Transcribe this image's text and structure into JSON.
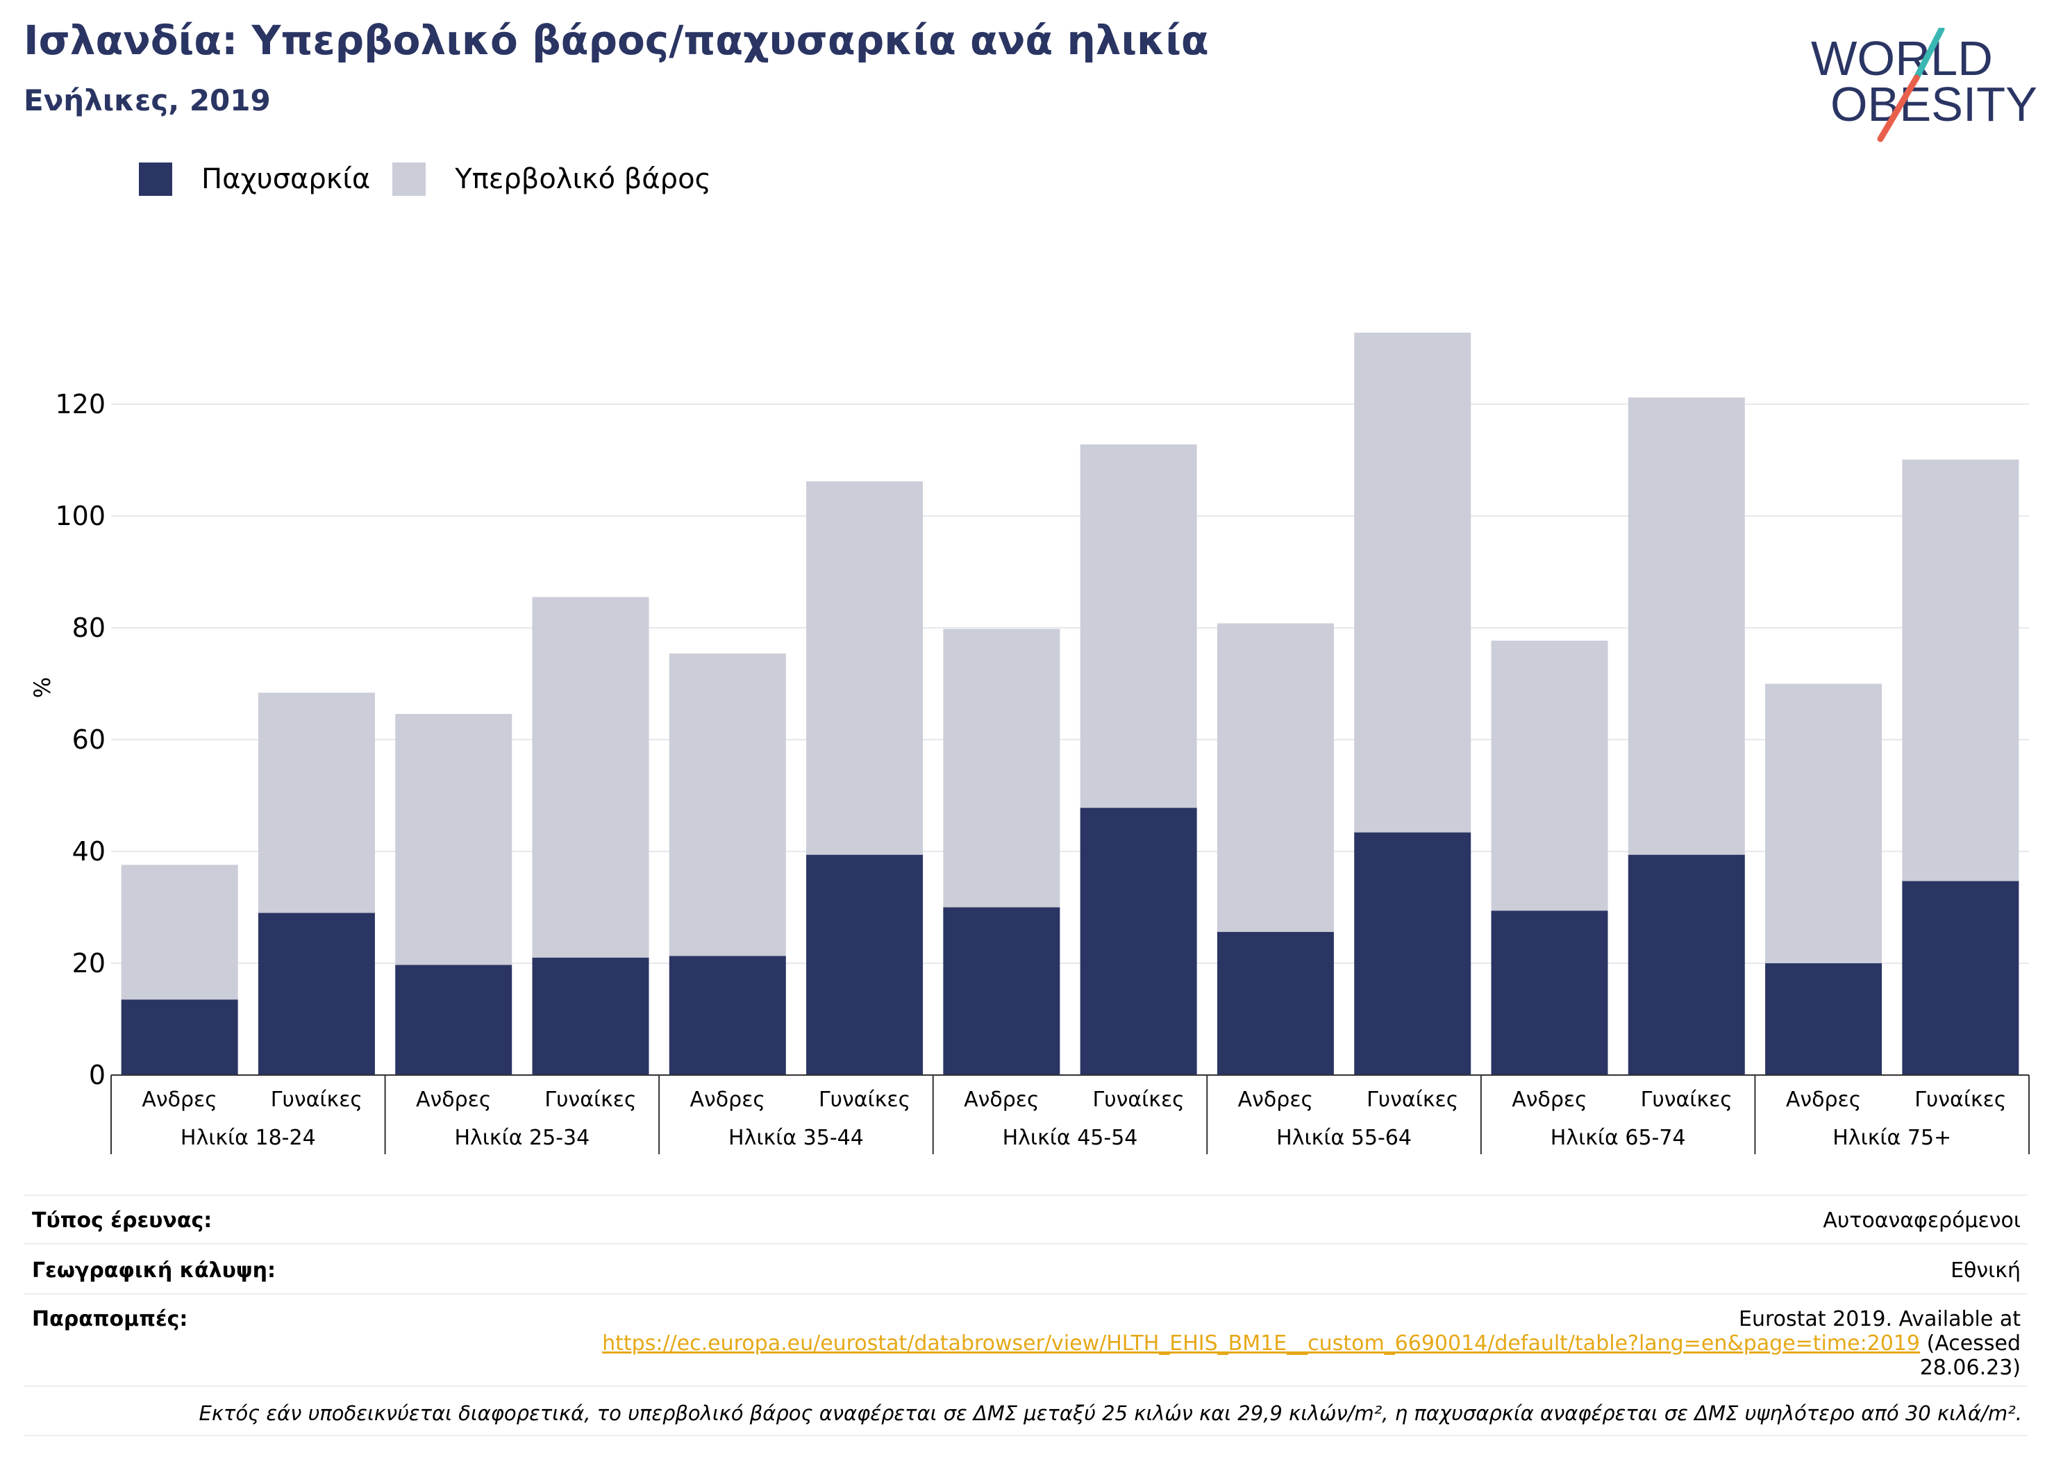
{
  "header": {
    "title": "Ισλανδία: Υπερβολικό βάρος/παχυσαρκία ανά ηλικία",
    "subtitle": "Ενήλικες, 2019",
    "logo_line1": "WORLD",
    "logo_line2": "OBESITY"
  },
  "colors": {
    "obesity": "#2a3563",
    "overweight": "#cbcdd8",
    "logo_text": "#2a3563",
    "logo_accent_teal": "#3ab7b3",
    "logo_accent_red": "#e8604c",
    "link": "#e6a817"
  },
  "chart_data": {
    "type": "bar",
    "stacked": true,
    "ylabel": "%",
    "ylim": [
      0,
      135
    ],
    "yticks": [
      0,
      20,
      40,
      60,
      80,
      100,
      120
    ],
    "grid": true,
    "legend_position": "top-left",
    "categories": [
      "Ανδρες",
      "Γυναίκες",
      "Ανδρες",
      "Γυναίκες",
      "Ανδρες",
      "Γυναίκες",
      "Ανδρες",
      "Γυναίκες",
      "Ανδρες",
      "Γυναίκες",
      "Ανδρες",
      "Γυναίκες",
      "Ανδρες",
      "Γυναίκες"
    ],
    "groups": [
      "Ηλικία 18-24",
      "Ηλικία 25-34",
      "Ηλικία 35-44",
      "Ηλικία 45-54",
      "Ηλικία 55-64",
      "Ηλικία 65-74",
      "Ηλικία 75+"
    ],
    "series": [
      {
        "name": "Παχυσαρκία",
        "values": [
          13.5,
          29.0,
          19.7,
          21.0,
          21.3,
          39.4,
          30.0,
          47.8,
          25.6,
          43.4,
          29.4,
          39.4,
          20.0,
          34.7
        ]
      },
      {
        "name": "Υπερβολικό βάρος",
        "values": [
          24.1,
          39.4,
          44.9,
          64.5,
          54.1,
          66.8,
          49.8,
          65.0,
          55.2,
          89.4,
          48.3,
          81.8,
          50.0,
          75.4
        ]
      }
    ]
  },
  "info": {
    "survey_type_label": "Τύπος έρευνας:",
    "survey_type_value": "Αυτοαναφερόμενοι",
    "coverage_label": "Γεωγραφική κάλυψη:",
    "coverage_value": "Εθνική",
    "references_label": "Παραπομπές:",
    "references_line1": "Eurostat 2019. Available at",
    "references_link": "https://ec.europa.eu/eurostat/databrowser/view/HLTH_EHIS_BM1E__custom_6690014/default/table?lang=en&page=time:2019",
    "references_suffix": "(Acessed",
    "references_date": "28.06.23)",
    "note": "Εκτός εάν υποδεικνύεται διαφορετικά, το υπερβολικό βάρος αναφέρεται σε ΔΜΣ μεταξύ 25 κιλών και 29,9 κιλών/m², η παχυσαρκία αναφέρεται σε ΔΜΣ υψηλότερο από 30 κιλά/m²."
  }
}
